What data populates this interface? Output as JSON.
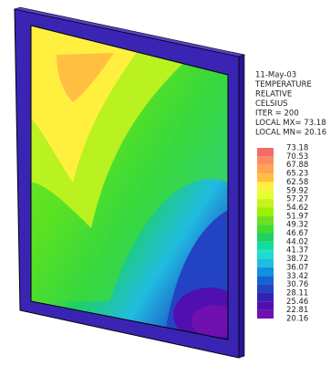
{
  "info": [
    "11-May-03",
    "TEMPERATURE",
    "RELATIVE",
    "CELSIUS",
    "ITER =    200",
    "LOCAL MX=  73.18",
    "LOCAL MN=  20.16"
  ],
  "legend": {
    "levels": [
      73.18,
      70.53,
      67.88,
      65.23,
      62.58,
      59.92,
      57.27,
      54.62,
      51.97,
      49.32,
      46.67,
      44.02,
      41.37,
      38.72,
      36.07,
      33.42,
      30.76,
      28.11,
      25.46,
      22.81,
      20.16
    ],
    "colors": [
      "#f26c6c",
      "#ff8a62",
      "#ffa552",
      "#ffc042",
      "#fff040",
      "#e6ff30",
      "#c4f420",
      "#9cf000",
      "#6ee020",
      "#40dc30",
      "#20d060",
      "#14dca0",
      "#20dcd0",
      "#20bce0",
      "#1090e0",
      "#1064d4",
      "#2244c4",
      "#3222b4",
      "#5010b0",
      "#7010b0"
    ]
  }
}
